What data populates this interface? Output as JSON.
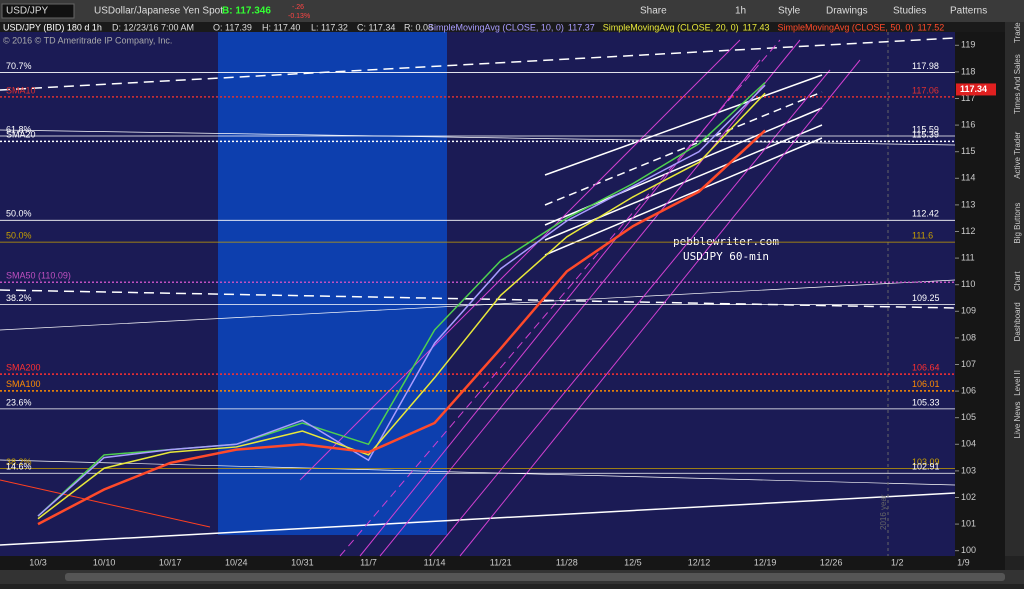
{
  "toolbar": {
    "symbol": "USD/JPY",
    "description": "USDollar/Japanese Yen Spot",
    "bid": "B: 117.346",
    "change": "-.26",
    "change_pct": "-0.13%",
    "buttons": [
      "Share",
      "1h",
      "Style",
      "Drawings",
      "Studies",
      "Patterns"
    ]
  },
  "info_bar": {
    "date": "D: 12/23/16 7:00 AM",
    "open": "O: 117.39",
    "high": "H: 117.40",
    "low": "L: 117.32",
    "close": "C: 117.34",
    "range": "R: 0.08"
  },
  "side_tabs": [
    "Trade",
    "Times And Sales",
    "Active Trader",
    "Big Buttons",
    "Chart",
    "Dashboard",
    "Level II",
    "Live News"
  ],
  "chart_data": {
    "type": "line",
    "title": "USD/JPY (BID) 180 d 1h",
    "copyright": "© 2016 © TD Ameritrade IP Company, Inc.",
    "annotations": [
      "pebblewriter.com",
      "USDJPY 60-min"
    ],
    "year_note": "2016 year",
    "categories": [
      "10/3",
      "10/10",
      "10/17",
      "10/24",
      "10/31",
      "11/7",
      "11/14",
      "11/21",
      "11/28",
      "12/5",
      "12/12",
      "12/19",
      "12/26",
      "1/2",
      "1/9"
    ],
    "series": [
      {
        "name": "USD/JPY",
        "color": "#4fd14f",
        "values": [
          101.3,
          103.6,
          103.8,
          104.0,
          104.8,
          104.0,
          108.3,
          110.9,
          112.5,
          113.8,
          115.3,
          117.6,
          null,
          null,
          null
        ]
      },
      {
        "name": "SimpleMovingAvg (CLOSE, 10, 0)",
        "color": "#a99cff",
        "last_value": 117.37,
        "values": [
          101.3,
          103.5,
          103.8,
          104.0,
          104.9,
          103.4,
          107.8,
          110.6,
          112.4,
          113.7,
          115.0,
          117.5,
          null,
          null,
          null
        ]
      },
      {
        "name": "SimpleMovingAvg (CLOSE, 20, 0)",
        "color": "#e8e83a",
        "last_value": 117.43,
        "values": [
          101.2,
          103.1,
          103.7,
          103.9,
          104.5,
          103.6,
          106.5,
          109.6,
          111.8,
          113.3,
          114.6,
          117.2,
          null,
          null,
          null
        ]
      },
      {
        "name": "SimpleMovingAvg (CLOSE, 50, 0)",
        "color": "#ff4a2a",
        "last_value": 117.52,
        "values": [
          101.0,
          102.3,
          103.3,
          103.8,
          104.0,
          103.7,
          104.8,
          107.6,
          110.5,
          112.2,
          113.5,
          115.8,
          null,
          null,
          null
        ]
      }
    ],
    "last_price": 117.34,
    "last_price_color": "#e02020",
    "levels": [
      {
        "label": "70.7%",
        "value": 117.98,
        "color": "#ffffff",
        "style": "solid",
        "show_value": true
      },
      {
        "label": "SMA10",
        "value": 117.06,
        "color": "#e03030",
        "style": "dotted",
        "show_value": true
      },
      {
        "label": "61.8%",
        "value": 115.59,
        "color": "#ffffff",
        "style": "solid",
        "show_value": true
      },
      {
        "label": "SMA20",
        "value": 115.39,
        "color": "#ffffff",
        "style": "dotted",
        "show_value": true
      },
      {
        "label": "50.0%",
        "value": 112.42,
        "color": "#ffffff",
        "style": "solid",
        "show_value": true
      },
      {
        "label": "50.0%",
        "value": 111.6,
        "color": "#c8a000",
        "style": "solid",
        "show_value": true
      },
      {
        "label": "SMA50 (110.09)",
        "value": 110.09,
        "color": "#c050c0",
        "style": "dotted",
        "show_value": false
      },
      {
        "label": "38.2%",
        "value": 109.25,
        "color": "#ffffff",
        "style": "solid",
        "show_value": true
      },
      {
        "label": "SMA200",
        "value": 106.64,
        "color": "#ff3030",
        "style": "dotted",
        "show_value": true
      },
      {
        "label": "SMA100",
        "value": 106.01,
        "color": "#ff8c00",
        "style": "dotted",
        "show_value": true
      },
      {
        "label": "23.6%",
        "value": 105.33,
        "color": "#ffffff",
        "style": "solid",
        "show_value": true
      },
      {
        "label": "38.2%",
        "value": 103.09,
        "color": "#c8a000",
        "style": "solid",
        "show_value": true
      },
      {
        "label": "14.6%",
        "value": 102.91,
        "color": "#ffffff",
        "style": "solid",
        "show_value": true
      }
    ],
    "ylim": [
      99.8,
      119.5
    ],
    "yticks": [
      100,
      101,
      102,
      103,
      104,
      105,
      106,
      107,
      108,
      109,
      110,
      111,
      112,
      113,
      114,
      115,
      116,
      117,
      118,
      119
    ]
  }
}
